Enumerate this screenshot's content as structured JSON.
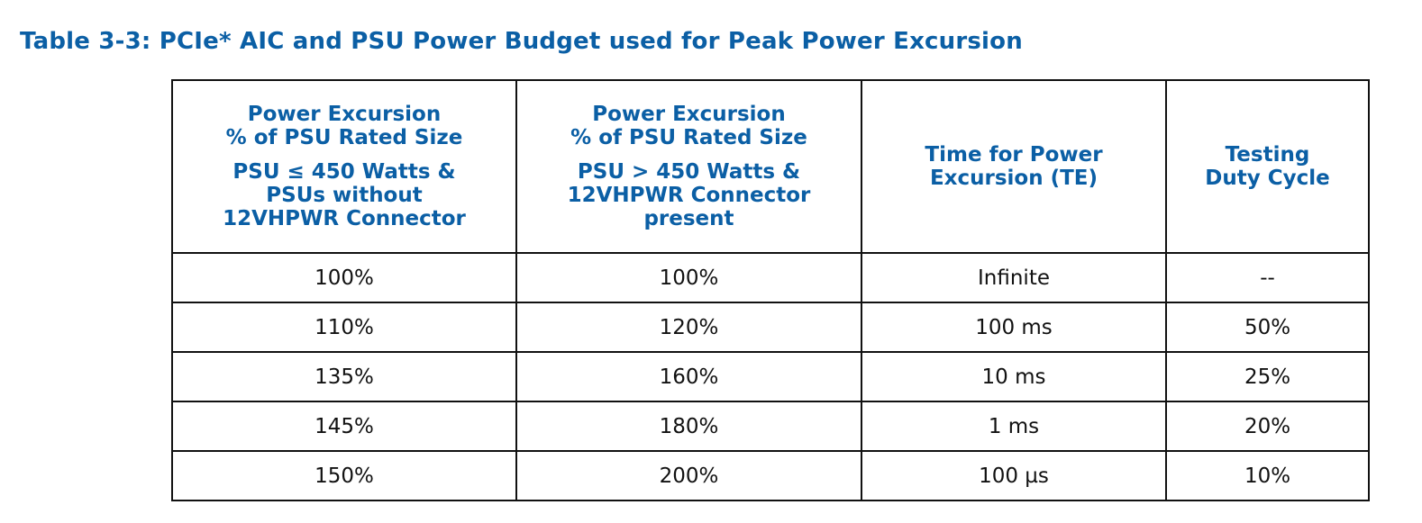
{
  "title": "Table 3-3: PCIe* AIC and PSU Power Budget used for Peak Power Excursion",
  "table": {
    "headers": [
      {
        "line1": "Power Excursion",
        "line2": "% of PSU Rated Size",
        "sub1": "PSU ≤ 450 Watts &",
        "sub2": "PSUs without",
        "sub3": "12VHPWR Connector"
      },
      {
        "line1": "Power Excursion",
        "line2": "% of PSU Rated Size",
        "sub1": "PSU > 450 Watts &",
        "sub2": "12VHPWR Connector",
        "sub3": "present"
      },
      {
        "line1": "Time for Power",
        "line2": "Excursion (TE)"
      },
      {
        "line1": "Testing",
        "line2": "Duty Cycle"
      }
    ],
    "rows": [
      [
        "100%",
        "100%",
        "Infinite",
        "--"
      ],
      [
        "110%",
        "120%",
        "100 ms",
        "50%"
      ],
      [
        "135%",
        "160%",
        "10 ms",
        "25%"
      ],
      [
        "145%",
        "180%",
        "1 ms",
        "20%"
      ],
      [
        "150%",
        "200%",
        "100 µs",
        "10%"
      ]
    ]
  },
  "colors": {
    "heading": "#0b5fa5",
    "text": "#111111",
    "border": "#111111"
  }
}
